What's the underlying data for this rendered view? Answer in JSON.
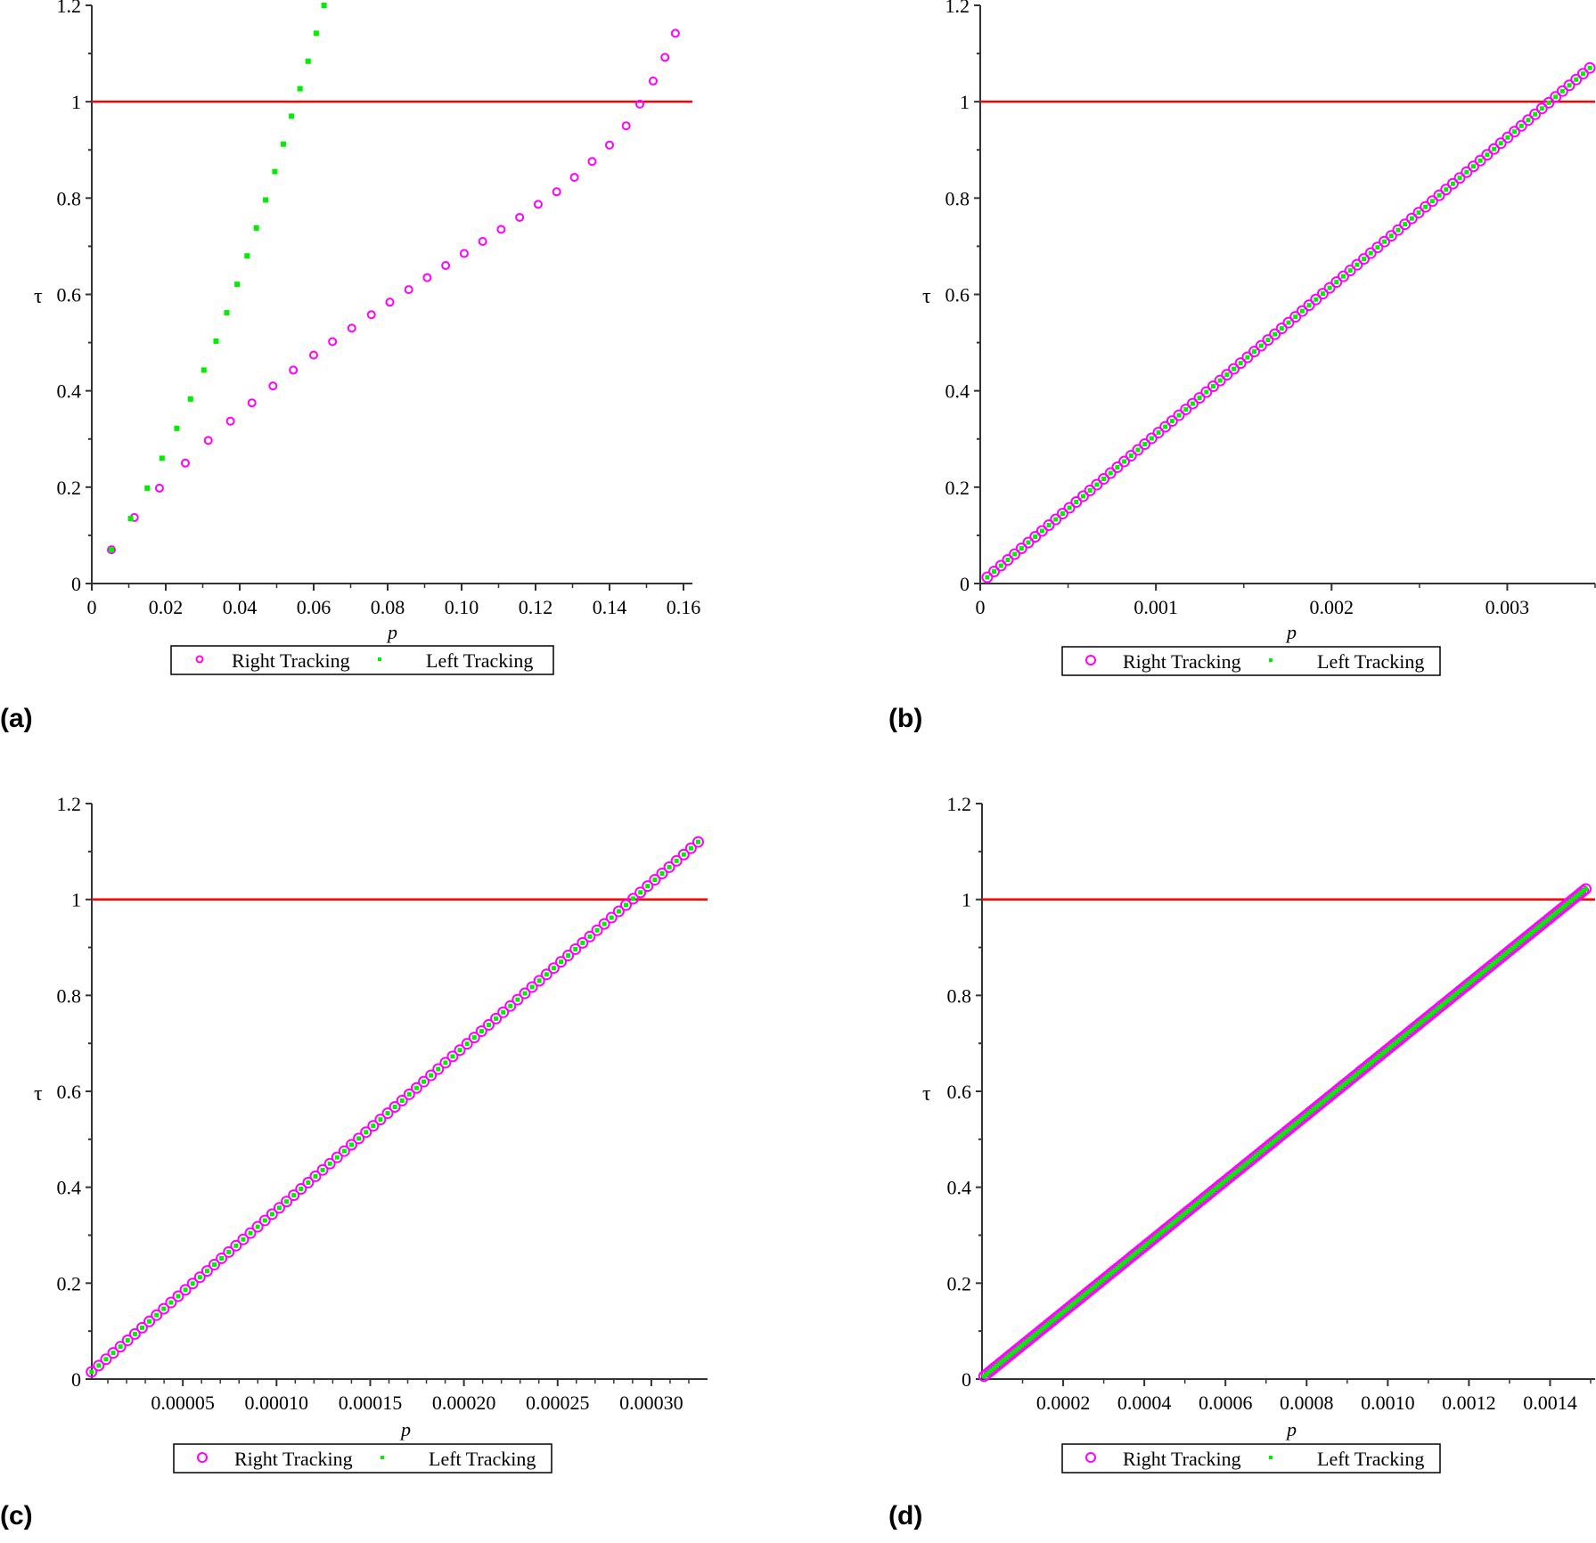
{
  "figure": {
    "panel_labels": [
      "(a)",
      "(b)",
      "(c)",
      "(d)"
    ]
  },
  "colors": {
    "right_tracking": "#ff00ff",
    "left_tracking": "#00ee00",
    "threshold_line": "#ff0000",
    "axis": "#333333"
  },
  "chart_data": [
    {
      "panel": "(a)",
      "type": "scatter",
      "title": "",
      "xlabel": "p",
      "ylabel": "τ",
      "xlim": [
        0,
        0.16
      ],
      "ylim": [
        0,
        1.2
      ],
      "xticks": [
        0,
        0.02,
        0.04,
        0.06,
        0.08,
        0.1,
        0.12,
        0.14,
        0.16
      ],
      "xtick_labels": [
        "0",
        "0.02",
        "0.04",
        "0.06",
        "0.08",
        "0.10",
        "0.12",
        "0.14",
        "0.16"
      ],
      "yticks": [
        0,
        0.2,
        0.4,
        0.6,
        0.8,
        1,
        1.2
      ],
      "ytick_labels": [
        "0",
        "0.2",
        "0.4",
        "0.6",
        "0.8",
        "1",
        "1.2"
      ],
      "grid": false,
      "hline": 1,
      "legend": {
        "position": "bottom",
        "entries": [
          "Right Tracking",
          "Left Tracking"
        ]
      },
      "series": [
        {
          "name": "Right Tracking",
          "marker": "circle-open",
          "x": [
            0.0053,
            0.0115,
            0.0183,
            0.0253,
            0.0315,
            0.0375,
            0.0433,
            0.049,
            0.0545,
            0.06,
            0.0651,
            0.0703,
            0.0756,
            0.0806,
            0.0857,
            0.0907,
            0.0957,
            0.1007,
            0.1057,
            0.1107,
            0.1157,
            0.1207,
            0.1257,
            0.1305,
            0.1353,
            0.14,
            0.1445,
            0.1482,
            0.1518,
            0.155,
            0.1578
          ],
          "y": [
            0.07,
            0.137,
            0.198,
            0.25,
            0.297,
            0.337,
            0.375,
            0.41,
            0.443,
            0.474,
            0.502,
            0.53,
            0.558,
            0.584,
            0.61,
            0.635,
            0.66,
            0.685,
            0.71,
            0.735,
            0.76,
            0.787,
            0.813,
            0.843,
            0.876,
            0.91,
            0.95,
            0.995,
            1.043,
            1.092,
            1.142
          ]
        },
        {
          "name": "Left Tracking",
          "marker": "square-filled",
          "x": [
            0.0053,
            0.0105,
            0.015,
            0.019,
            0.023,
            0.0267,
            0.0303,
            0.0336,
            0.0365,
            0.0393,
            0.042,
            0.0445,
            0.047,
            0.0495,
            0.0518,
            0.054,
            0.0563,
            0.0585,
            0.0607,
            0.0628,
            0.065
          ],
          "y": [
            0.07,
            0.135,
            0.198,
            0.26,
            0.322,
            0.383,
            0.443,
            0.503,
            0.562,
            0.621,
            0.68,
            0.738,
            0.796,
            0.855,
            0.912,
            0.97,
            1.027,
            1.084,
            1.142,
            1.2,
            1.258
          ]
        }
      ]
    },
    {
      "panel": "(b)",
      "type": "scatter",
      "title": "",
      "xlabel": "p",
      "ylabel": "τ",
      "xlim": [
        0,
        0.0035
      ],
      "ylim": [
        0,
        1.2
      ],
      "xticks": [
        0,
        0.001,
        0.002,
        0.003
      ],
      "xtick_labels": [
        "0",
        "0.001",
        "0.002",
        "0.003"
      ],
      "xminor_step": 0.0005,
      "yticks": [
        0,
        0.2,
        0.4,
        0.6,
        0.8,
        1,
        1.2
      ],
      "ytick_labels": [
        "0",
        "0.2",
        "0.4",
        "0.6",
        "0.8",
        "1",
        "1.2"
      ],
      "grid": false,
      "hline": 1,
      "legend": {
        "position": "bottom",
        "entries": [
          "Right Tracking",
          "Left Tracking"
        ]
      },
      "series": [
        {
          "name": "Right Tracking",
          "marker": "circle-open",
          "linear": {
            "x0": 4e-05,
            "x1": 0.00347,
            "y0": 0.013,
            "y1": 1.07,
            "n": 89
          }
        },
        {
          "name": "Left Tracking",
          "marker": "square-filled",
          "linear": {
            "x0": 4e-05,
            "x1": 0.00347,
            "y0": 0.013,
            "y1": 1.07,
            "n": 89
          }
        }
      ],
      "notes": "Right and Left Tracking points coincide; linear relation crossing τ=1 at p≈0.00326"
    },
    {
      "panel": "(c)",
      "type": "scatter",
      "title": "",
      "xlabel": "p",
      "ylabel": "τ",
      "xlim": [
        0,
        0.00033
      ],
      "ylim": [
        0,
        1.2
      ],
      "xticks": [
        5e-05,
        0.0001,
        0.00015,
        0.0002,
        0.00025,
        0.0003
      ],
      "xtick_labels": [
        "0.00005",
        "0.00010",
        "0.00015",
        "0.00020",
        "0.00025",
        "0.00030"
      ],
      "xminor_step": 1e-05,
      "yticks": [
        0,
        0.2,
        0.4,
        0.6,
        0.8,
        1,
        1.2
      ],
      "ytick_labels": [
        "0",
        "0.2",
        "0.4",
        "0.6",
        "0.8",
        "1",
        "1.2"
      ],
      "grid": false,
      "hline": 1,
      "legend": {
        "position": "bottom",
        "entries": [
          "Right Tracking",
          "Left Tracking"
        ]
      },
      "series": [
        {
          "name": "Right Tracking",
          "marker": "circle-open",
          "linear": {
            "x0": 1.3e-06,
            "x1": 0.000325,
            "y0": 0.015,
            "y1": 1.12,
            "n": 85
          }
        },
        {
          "name": "Left Tracking",
          "marker": "square-filled",
          "linear": {
            "x0": 1.3e-06,
            "x1": 0.000325,
            "y0": 0.015,
            "y1": 1.12,
            "n": 85
          }
        }
      ],
      "notes": "Right and Left Tracking points coincide; crossing τ=1 at p≈0.00029"
    },
    {
      "panel": "(d)",
      "type": "scatter",
      "title": "",
      "xlabel": "p",
      "ylabel": "τ",
      "xlim": [
        0,
        0.0015
      ],
      "ylim": [
        0,
        1.2
      ],
      "xticks": [
        0.0002,
        0.0004,
        0.0006,
        0.0008,
        0.001,
        0.0012,
        0.0014
      ],
      "xtick_labels": [
        "0.0002",
        "0.0004",
        "0.0006",
        "0.0008",
        "0.0010",
        "0.0012",
        "0.0014"
      ],
      "xminor_step": 0.0001,
      "yticks": [
        0,
        0.2,
        0.4,
        0.6,
        0.8,
        1,
        1.2
      ],
      "ytick_labels": [
        "0",
        "0.2",
        "0.4",
        "0.6",
        "0.8",
        "1",
        "1.2"
      ],
      "grid": false,
      "hline": 1,
      "legend": {
        "position": "bottom",
        "entries": [
          "Right Tracking",
          "Left Tracking"
        ]
      },
      "series": [
        {
          "name": "Right Tracking",
          "marker": "circle-open",
          "linear": {
            "x0": 5e-06,
            "x1": 0.001488,
            "y0": 0.006,
            "y1": 1.022,
            "n": 240
          }
        },
        {
          "name": "Left Tracking",
          "marker": "square-filled",
          "linear": {
            "x0": 5e-06,
            "x1": 0.001488,
            "y0": 0.006,
            "y1": 1.022,
            "n": 240
          }
        }
      ],
      "notes": "Dense overlapping points; crossing τ=1 at p≈0.00146"
    }
  ]
}
